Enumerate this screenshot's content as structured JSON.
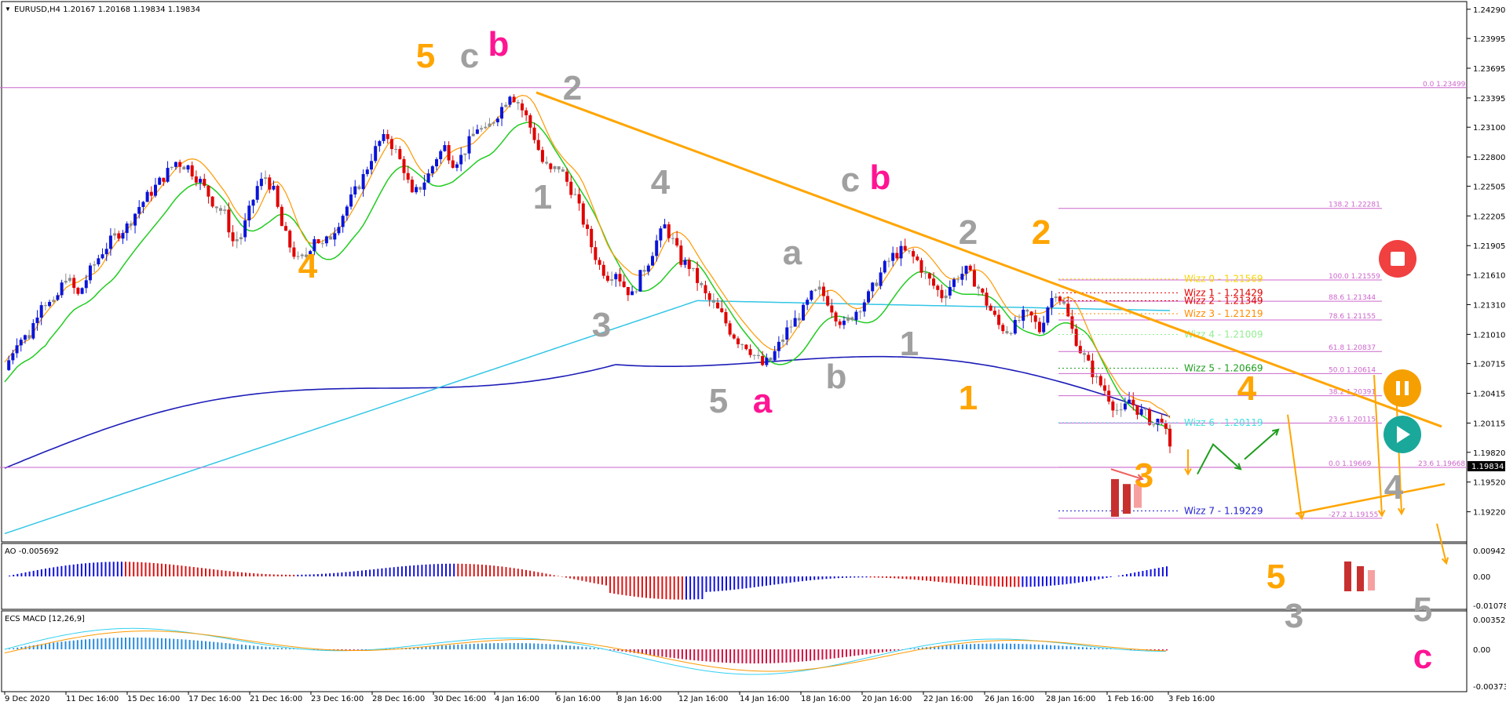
{
  "header": {
    "symbol_line": "EURUSD,H4  1.20167 1.20168 1.19834 1.19834"
  },
  "chart_data": [
    {
      "type": "candlestick",
      "symbol": "EURUSD",
      "timeframe": "H4",
      "ohlc_last": {
        "open": 1.20167,
        "high": 1.20168,
        "low": 1.19834,
        "close": 1.19834
      },
      "current_price": "1.19834",
      "ylim": [
        1.1894,
        1.2432
      ],
      "y_ticks": [
        "1.24290",
        "1.23995",
        "1.23695",
        "1.23395",
        "1.23100",
        "1.22800",
        "1.22505",
        "1.22205",
        "1.21905",
        "1.21610",
        "1.21310",
        "1.21010",
        "1.20715",
        "1.20415",
        "1.20115",
        "1.19820",
        "1.19520",
        "1.19220"
      ],
      "x_ticks": [
        "9 Dec 2020",
        "11 Dec 16:00",
        "15 Dec 16:00",
        "17 Dec 16:00",
        "21 Dec 16:00",
        "23 Dec 16:00",
        "28 Dec 16:00",
        "30 Dec 16:00",
        "4 Jan 16:00",
        "6 Jan 16:00",
        "8 Jan 16:00",
        "12 Jan 16:00",
        "14 Jan 16:00",
        "18 Jan 16:00",
        "20 Jan 16:00",
        "22 Jan 16:00",
        "26 Jan 16:00",
        "28 Jan 16:00",
        "1 Feb 16:00",
        "3 Feb 16:00"
      ],
      "price_path": [
        [
          0,
          1.2065
        ],
        [
          3,
          1.2095
        ],
        [
          6,
          1.21
        ],
        [
          9,
          1.2135
        ],
        [
          12,
          1.213
        ],
        [
          15,
          1.216
        ],
        [
          18,
          1.214
        ],
        [
          21,
          1.2165
        ],
        [
          24,
          1.2185
        ],
        [
          27,
          1.22
        ],
        [
          30,
          1.221
        ],
        [
          33,
          1.223
        ],
        [
          36,
          1.2245
        ],
        [
          39,
          1.226
        ],
        [
          42,
          1.2275
        ],
        [
          45,
          1.227
        ],
        [
          48,
          1.2255
        ],
        [
          51,
          1.2235
        ],
        [
          54,
          1.2222
        ],
        [
          56,
          1.2195
        ],
        [
          58,
          1.22
        ],
        [
          60,
          1.2225
        ],
        [
          62,
          1.225
        ],
        [
          64,
          1.226
        ],
        [
          66,
          1.2245
        ],
        [
          68,
          1.221
        ],
        [
          70,
          1.219
        ],
        [
          72,
          1.2175
        ],
        [
          74,
          1.218
        ],
        [
          76,
          1.22
        ],
        [
          78,
          1.219
        ],
        [
          80,
          1.22
        ],
        [
          82,
          1.2215
        ],
        [
          84,
          1.223
        ],
        [
          86,
          1.2245
        ],
        [
          88,
          1.226
        ],
        [
          90,
          1.228
        ],
        [
          92,
          1.2295
        ],
        [
          94,
          1.23
        ],
        [
          96,
          1.2285
        ],
        [
          98,
          1.2268
        ],
        [
          100,
          1.224
        ],
        [
          102,
          1.225
        ],
        [
          104,
          1.2262
        ],
        [
          106,
          1.228
        ],
        [
          108,
          1.229
        ],
        [
          110,
          1.2275
        ],
        [
          112,
          1.228
        ],
        [
          114,
          1.2295
        ],
        [
          116,
          1.231
        ],
        [
          118,
          1.2305
        ],
        [
          120,
          1.2318
        ],
        [
          122,
          1.233
        ],
        [
          124,
          1.2345
        ],
        [
          126,
          1.2335
        ],
        [
          128,
          1.232
        ],
        [
          130,
          1.23
        ],
        [
          132,
          1.2275
        ],
        [
          134,
          1.2265
        ],
        [
          136,
          1.227
        ],
        [
          138,
          1.2255
        ],
        [
          140,
          1.224
        ],
        [
          142,
          1.2215
        ],
        [
          144,
          1.219
        ],
        [
          146,
          1.217
        ],
        [
          148,
          1.216
        ],
        [
          150,
          1.2165
        ],
        [
          152,
          1.215
        ],
        [
          154,
          1.214
        ],
        [
          156,
          1.216
        ],
        [
          158,
          1.2175
        ],
        [
          160,
          1.2195
        ],
        [
          162,
          1.221
        ],
        [
          164,
          1.2195
        ],
        [
          166,
          1.2175
        ],
        [
          168,
          1.217
        ],
        [
          170,
          1.2155
        ],
        [
          172,
          1.214
        ],
        [
          174,
          1.213
        ],
        [
          176,
          1.212
        ],
        [
          178,
          1.2105
        ],
        [
          180,
          1.2095
        ],
        [
          182,
          1.209
        ],
        [
          184,
          1.208
        ],
        [
          186,
          1.207
        ],
        [
          188,
          1.2075
        ],
        [
          190,
          1.209
        ],
        [
          192,
          1.2105
        ],
        [
          194,
          1.2115
        ],
        [
          196,
          1.2125
        ],
        [
          198,
          1.214
        ],
        [
          200,
          1.2145
        ],
        [
          202,
          1.2135
        ],
        [
          204,
          1.212
        ],
        [
          206,
          1.211
        ],
        [
          208,
          1.212
        ],
        [
          210,
          1.213
        ],
        [
          212,
          1.214
        ],
        [
          214,
          1.2155
        ],
        [
          216,
          1.217
        ],
        [
          218,
          1.218
        ],
        [
          220,
          1.2185
        ],
        [
          222,
          1.2182
        ],
        [
          224,
          1.2175
        ],
        [
          226,
          1.216
        ],
        [
          228,
          1.215
        ],
        [
          230,
          1.214
        ],
        [
          232,
          1.215
        ],
        [
          234,
          1.216
        ],
        [
          236,
          1.2165
        ],
        [
          238,
          1.2155
        ],
        [
          240,
          1.214
        ],
        [
          242,
          1.2125
        ],
        [
          244,
          1.211
        ],
        [
          246,
          1.2105
        ],
        [
          248,
          1.211
        ],
        [
          250,
          1.212
        ],
        [
          252,
          1.2118
        ],
        [
          254,
          1.2105
        ],
        [
          256,
          1.213
        ],
        [
          258,
          1.2145
        ],
        [
          260,
          1.213
        ],
        [
          262,
          1.2105
        ],
        [
          264,
          1.2085
        ],
        [
          266,
          1.207
        ],
        [
          268,
          1.2055
        ],
        [
          270,
          1.2045
        ],
        [
          272,
          1.203
        ],
        [
          274,
          1.202
        ],
        [
          276,
          1.2035
        ],
        [
          278,
          1.2025
        ],
        [
          280,
          1.202
        ],
        [
          282,
          1.201
        ],
        [
          284,
          1.2017
        ],
        [
          286,
          1.1983
        ]
      ],
      "indicators": [
        "EMA 200 (dark blue)",
        "EMA 144 (light blue)",
        "EMA 21 (green)",
        "EMA 8 (orange)",
        "Wizz levels"
      ],
      "wizz_levels": [
        {
          "label": "Wizz 0 - 1.21569",
          "color": "#f5d400",
          "price": 1.21569
        },
        {
          "label": "Wizz 1 - 1.21429",
          "color": "#e00000",
          "price": 1.21429
        },
        {
          "label": "Wizz 2 - 1.21349",
          "color": "#e00000",
          "price": 1.21349
        },
        {
          "label": "Wizz 3 - 1.21219",
          "color": "#ff8c00",
          "price": 1.21219
        },
        {
          "label": "Wizz 4 - 1.21009",
          "color": "#90ee90",
          "price": 1.21009
        },
        {
          "label": "Wizz 5 - 1.20669",
          "color": "#1e9e1e",
          "price": 1.20669
        },
        {
          "label": "Wizz 6 - 1.20119",
          "color": "#40e0e0",
          "price": 1.20119
        },
        {
          "label": "Wizz 7 - 1.19229",
          "color": "#2020d0",
          "price": 1.19229
        }
      ],
      "fib_levels": [
        {
          "label": "138.2 1.22281",
          "price": 1.22281
        },
        {
          "label": "100.0 1.21559",
          "price": 1.21559
        },
        {
          "label": "88.6 1.21344",
          "price": 1.21344
        },
        {
          "label": "78.6 1.21155",
          "price": 1.21155
        },
        {
          "label": "61.8 1.20837",
          "price": 1.20837
        },
        {
          "label": "50.0 1.20614",
          "price": 1.20614
        },
        {
          "label": "38.2 1.20391",
          "price": 1.20391
        },
        {
          "label": "23.6 1.20115",
          "price": 1.20115
        },
        {
          "label": "0.0 1.19669",
          "price": 1.19669
        },
        {
          "label": "-27.2 1.19155",
          "price": 1.19155
        }
      ],
      "horizontal_levels": [
        {
          "label": "0.0 1.23499",
          "price": 1.23499
        },
        {
          "label": "23.6 1.19668",
          "price": 1.19668
        }
      ],
      "wave_labels": [
        {
          "text": "5",
          "color": "#ffa500",
          "x": 0.29,
          "price": 1.237
        },
        {
          "text": "c",
          "color": "#a0a0a0",
          "x": 0.32,
          "price": 1.237
        },
        {
          "text": "b",
          "color": "#ff1493",
          "x": 0.34,
          "price": 1.2382
        },
        {
          "text": "2",
          "color": "#a0a0a0",
          "x": 0.39,
          "price": 1.2338
        },
        {
          "text": "4",
          "color": "#ffa500",
          "x": 0.21,
          "price": 1.2158
        },
        {
          "text": "1",
          "color": "#a0a0a0",
          "x": 0.37,
          "price": 1.2228
        },
        {
          "text": "4",
          "color": "#a0a0a0",
          "x": 0.45,
          "price": 1.2243
        },
        {
          "text": "3",
          "color": "#a0a0a0",
          "x": 0.41,
          "price": 1.2099
        },
        {
          "text": "5",
          "color": "#a0a0a0",
          "x": 0.49,
          "price": 1.2022
        },
        {
          "text": "a",
          "color": "#ff1493",
          "x": 0.52,
          "price": 1.2022
        },
        {
          "text": "a",
          "color": "#a0a0a0",
          "x": 0.54,
          "price": 1.2172
        },
        {
          "text": "b",
          "color": "#a0a0a0",
          "x": 0.57,
          "price": 1.2047
        },
        {
          "text": "c",
          "color": "#a0a0a0",
          "x": 0.58,
          "price": 1.2245
        },
        {
          "text": "b",
          "color": "#ff1493",
          "x": 0.6,
          "price": 1.2248
        },
        {
          "text": "1",
          "color": "#a0a0a0",
          "x": 0.62,
          "price": 1.208
        },
        {
          "text": "2",
          "color": "#a0a0a0",
          "x": 0.66,
          "price": 1.2192
        },
        {
          "text": "1",
          "color": "#ffa500",
          "x": 0.66,
          "price": 1.2025
        },
        {
          "text": "2",
          "color": "#ffa500",
          "x": 0.71,
          "price": 1.2192
        },
        {
          "text": "4",
          "color": "#ffa500",
          "x": 0.85,
          "price": 1.2035
        },
        {
          "text": "3",
          "color": "#ffa500",
          "x": 0.78,
          "price": 1.1947
        },
        {
          "text": "4",
          "color": "#a0a0a0",
          "x": 0.95,
          "price": 1.1935
        }
      ],
      "ao": {
        "label": "AO -0.005692",
        "ticks": [
          "0.009423",
          "0.00",
          "-0.01078"
        ]
      },
      "macd": {
        "label": "ECS MACD [12,26,9]",
        "ticks": [
          "0.0035285",
          "0.00",
          "-0.003738"
        ]
      },
      "sub_labels": [
        {
          "text": "5",
          "color": "#ffa500"
        },
        {
          "text": "3",
          "color": "#a0a0a0"
        },
        {
          "text": "5",
          "color": "#a0a0a0"
        },
        {
          "text": "c",
          "color": "#ff1493"
        }
      ],
      "colors": {
        "bull": "#0a14d8",
        "bear": "#e00000",
        "neutral": "#8c8c8c",
        "trendline": "#ffa500",
        "ema200": "#1d1db8",
        "ema144": "#33c6e6",
        "ema21": "#22cc22",
        "ema8": "#ff9900",
        "fib": "#cc66cc",
        "ao_up": "#1010e0",
        "ao_dn": "#e01010",
        "macd_hist_up": "#2a8ce0",
        "macd_hist_dn": "#d01040"
      },
      "buttons": [
        "stop-icon",
        "pause-icon",
        "play-icon"
      ]
    }
  ]
}
